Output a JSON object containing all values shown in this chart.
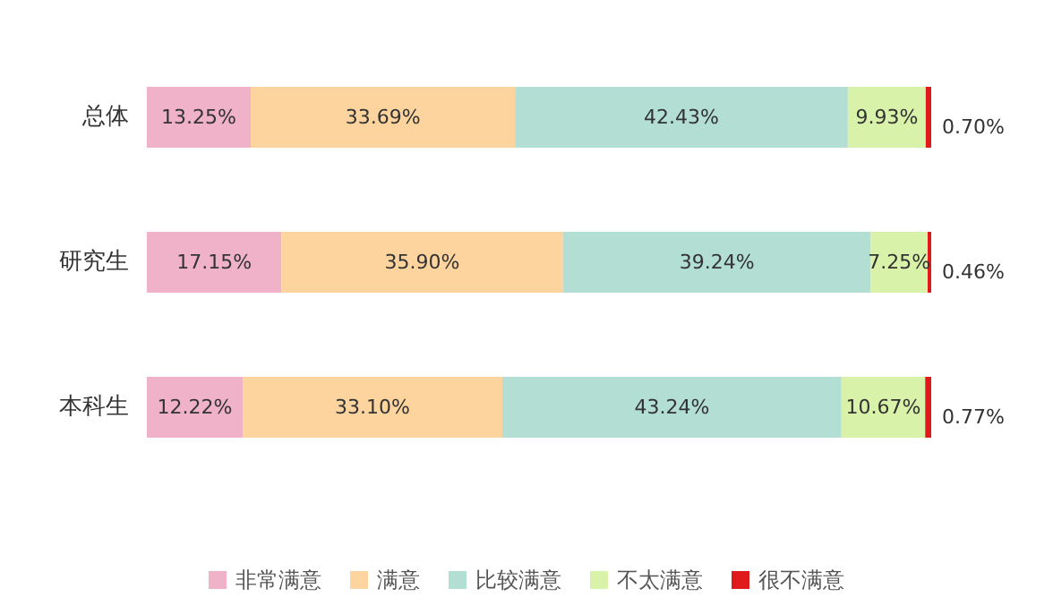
{
  "chart_data": {
    "type": "bar",
    "orientation": "horizontal",
    "stacked": true,
    "categories": [
      "总体",
      "研究生",
      "本科生"
    ],
    "series": [
      {
        "name": "非常满意",
        "color": "#f0b2c9",
        "values": [
          13.25,
          17.15,
          12.22
        ],
        "value_labels": [
          "13.25%",
          "17.15%",
          "12.22%"
        ]
      },
      {
        "name": "满意",
        "color": "#fdd49e",
        "values": [
          33.69,
          35.9,
          33.1
        ],
        "value_labels": [
          "33.69%",
          "35.90%",
          "33.10%"
        ]
      },
      {
        "name": "比较满意",
        "color": "#b2ded3",
        "values": [
          42.43,
          39.24,
          43.24
        ],
        "value_labels": [
          "42.43%",
          "39.24%",
          "43.24%"
        ]
      },
      {
        "name": "不太满意",
        "color": "#d9f2a9",
        "values": [
          9.93,
          7.25,
          10.67
        ],
        "value_labels": [
          "9.93%",
          "7.25%",
          "10.67%"
        ]
      },
      {
        "name": "很不满意",
        "color": "#e0191b",
        "values": [
          0.7,
          0.46,
          0.77
        ],
        "value_labels": [
          "0.70%",
          "0.46%",
          "0.77%"
        ]
      }
    ],
    "legend": "bottom"
  }
}
